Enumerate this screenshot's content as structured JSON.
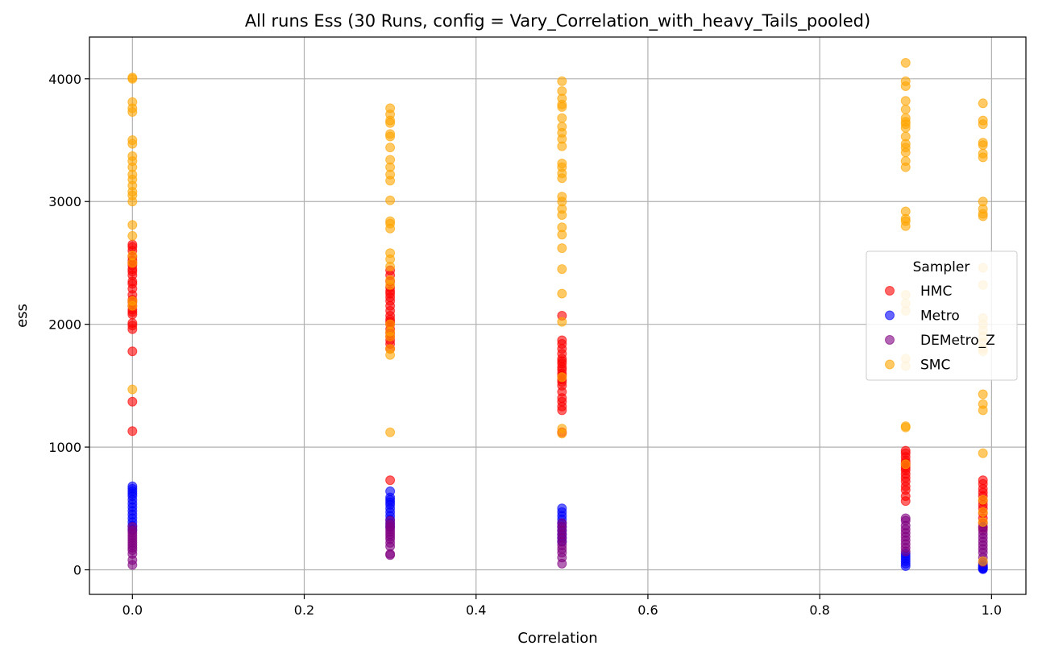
{
  "chart_data": {
    "type": "scatter",
    "title": "All runs Ess (30 Runs, config = Vary_Correlation_with_heavy_Tails_pooled)",
    "xlabel": "Correlation",
    "ylabel": "ess",
    "xlim": [
      -0.05,
      1.04
    ],
    "ylim": [
      -200,
      4340
    ],
    "x_ticks": [
      0.0,
      0.2,
      0.4,
      0.6,
      0.8,
      1.0
    ],
    "x_tick_labels": [
      "0.0",
      "0.2",
      "0.4",
      "0.6",
      "0.8",
      "1.0"
    ],
    "y_ticks": [
      0,
      1000,
      2000,
      3000,
      4000
    ],
    "y_tick_labels": [
      "0",
      "1000",
      "2000",
      "3000",
      "4000"
    ],
    "grid": true,
    "legend": {
      "title": "Sampler",
      "placement": "center-right"
    },
    "x_values": [
      0.0,
      0.3,
      0.5,
      0.9,
      0.99
    ],
    "series": [
      {
        "name": "HMC",
        "color": "#ff0000",
        "points": {
          "0.0": [
            1130,
            1370,
            1780,
            1960,
            1990,
            2010,
            2080,
            2100,
            2120,
            2150,
            2180,
            2200,
            2240,
            2290,
            2330,
            2350,
            2400,
            2430,
            2450,
            2480,
            2500,
            2520,
            2550,
            2600,
            2630,
            2650
          ],
          "0.3": [
            730,
            1800,
            1840,
            1870,
            1900,
            1930,
            1960,
            2000,
            2020,
            2040,
            2070,
            2110,
            2150,
            2190,
            2220,
            2250,
            2270,
            2300,
            2350,
            2400,
            2440
          ],
          "0.5": [
            1120,
            1300,
            1330,
            1370,
            1400,
            1450,
            1500,
            1530,
            1550,
            1580,
            1600,
            1630,
            1650,
            1680,
            1700,
            1720,
            1760,
            1800,
            1840,
            1870,
            2070
          ],
          "0.9": [
            560,
            600,
            650,
            680,
            720,
            750,
            780,
            810,
            830,
            850,
            870,
            890,
            920,
            950,
            970
          ],
          "0.99": [
            340,
            380,
            420,
            460,
            500,
            530,
            560,
            600,
            630,
            660,
            700,
            730
          ]
        }
      },
      {
        "name": "Metro",
        "color": "#0000ff",
        "points": {
          "0.0": [
            330,
            360,
            390,
            420,
            450,
            480,
            510,
            540,
            570,
            600,
            620,
            640,
            660,
            680
          ],
          "0.3": [
            350,
            380,
            410,
            440,
            470,
            500,
            530,
            550,
            570,
            590,
            640
          ],
          "0.5": [
            230,
            260,
            290,
            320,
            350,
            380,
            410,
            440,
            470,
            500
          ],
          "0.9": [
            30,
            50,
            70,
            90,
            110,
            130
          ],
          "0.99": [
            5,
            10,
            15,
            20,
            30,
            40
          ]
        }
      },
      {
        "name": "DEMetro_Z",
        "color": "#800080",
        "points": {
          "0.0": [
            40,
            80,
            130,
            160,
            180,
            200,
            220,
            240,
            260,
            280,
            300,
            320,
            350
          ],
          "0.3": [
            120,
            130,
            190,
            220,
            250,
            270,
            290,
            310,
            330,
            350,
            370,
            400
          ],
          "0.5": [
            50,
            100,
            140,
            170,
            200,
            230,
            260,
            290,
            320,
            350,
            380
          ],
          "0.9": [
            150,
            180,
            210,
            240,
            270,
            300,
            330,
            360,
            400,
            420
          ],
          "0.99": [
            60,
            100,
            140,
            170,
            200,
            230,
            260,
            290,
            320,
            350
          ]
        }
      },
      {
        "name": "SMC",
        "color": "#ffa500",
        "points": {
          "0.0": [
            1470,
            2150,
            2190,
            2500,
            2560,
            2720,
            2810,
            3000,
            3050,
            3080,
            3130,
            3180,
            3220,
            3280,
            3330,
            3370,
            3470,
            3500,
            3730,
            3760,
            3810,
            4000,
            4010
          ],
          "0.3": [
            1120,
            1750,
            1800,
            1900,
            1940,
            2000,
            2320,
            2360,
            2470,
            2530,
            2580,
            2780,
            2820,
            2840,
            3010,
            3170,
            3220,
            3280,
            3340,
            3440,
            3530,
            3550,
            3640,
            3660,
            3710,
            3760
          ],
          "0.5": [
            1110,
            1150,
            1570,
            2020,
            2250,
            2450,
            2620,
            2730,
            2790,
            2890,
            2940,
            3000,
            3040,
            3190,
            3230,
            3280,
            3310,
            3450,
            3510,
            3560,
            3610,
            3680,
            3770,
            3790,
            3840,
            3900,
            3980
          ],
          "0.9": [
            860,
            1160,
            1170,
            1660,
            1720,
            2110,
            2170,
            2240,
            2800,
            2840,
            2860,
            2920,
            3280,
            3330,
            3400,
            3440,
            3470,
            3530,
            3600,
            3630,
            3650,
            3680,
            3750,
            3820,
            3940,
            3980,
            4130
          ],
          "0.99": [
            70,
            390,
            470,
            570,
            950,
            1300,
            1350,
            1430,
            1780,
            1800,
            1850,
            1900,
            1950,
            2000,
            2050,
            2320,
            2460,
            2880,
            2900,
            2940,
            3000,
            3360,
            3390,
            3460,
            3480,
            3630,
            3660,
            3800
          ]
        }
      }
    ]
  }
}
